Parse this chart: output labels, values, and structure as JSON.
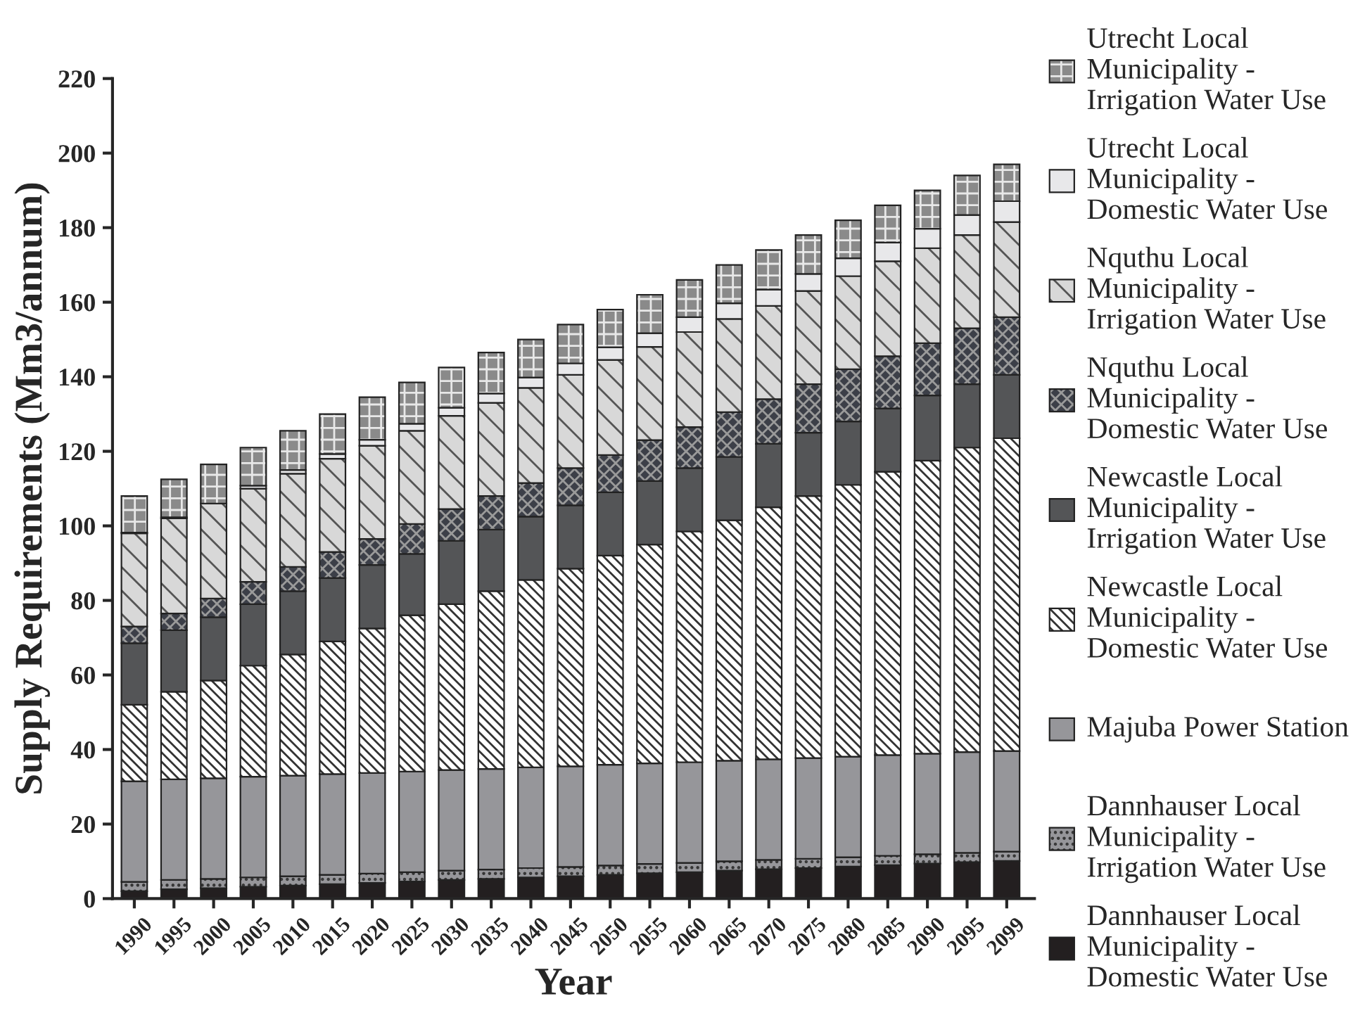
{
  "chart_data": {
    "type": "bar",
    "stacked": true,
    "xlabel": "Year",
    "ylabel": "Supply Requirements (Mm3/annum)",
    "categories": [
      "1990",
      "1995",
      "2000",
      "2005",
      "2010",
      "2015",
      "2020",
      "2025",
      "2030",
      "2035",
      "2040",
      "2045",
      "2050",
      "2055",
      "2060",
      "2065",
      "2070",
      "2075",
      "2080",
      "2085",
      "2090",
      "2095",
      "2099"
    ],
    "series": [
      {
        "name": "Dannhauser Local Municipality - Domestic Water Use",
        "color": "#231f20",
        "values": [
          2.0,
          2.5,
          2.8,
          3.2,
          3.5,
          3.9,
          4.2,
          4.6,
          5.0,
          5.3,
          5.7,
          6.0,
          6.4,
          6.8,
          7.1,
          7.5,
          7.9,
          8.2,
          8.6,
          9.0,
          9.4,
          9.8,
          10.1
        ]
      },
      {
        "name": "Dannhauser Local Municipality - Irrigation Water Use",
        "color": "#96969a",
        "values": [
          2.5,
          2.5,
          2.5,
          2.5,
          2.5,
          2.5,
          2.5,
          2.5,
          2.5,
          2.5,
          2.5,
          2.5,
          2.5,
          2.5,
          2.5,
          2.5,
          2.5,
          2.5,
          2.5,
          2.5,
          2.5,
          2.5,
          2.5
        ]
      },
      {
        "name": "Majuba Power Station",
        "color": "#96969a",
        "values": [
          27,
          27,
          27,
          27,
          27,
          27,
          27,
          27,
          27,
          27,
          27,
          27,
          27,
          27,
          27,
          27,
          27,
          27,
          27,
          27,
          27,
          27,
          27
        ]
      },
      {
        "name": "Newcastle Local Municipality - Domestic Water Use",
        "color": "#ffffff",
        "values": [
          20.5,
          23.5,
          26.2,
          29.8,
          32.5,
          35.6,
          38.8,
          41.9,
          44.5,
          47.7,
          50.3,
          53.0,
          56.1,
          58.7,
          61.9,
          64.5,
          67.6,
          70.3,
          72.9,
          76.0,
          78.6,
          81.7,
          83.9
        ]
      },
      {
        "name": "Newcastle Local Municipality - Irrigation Water Use",
        "color": "#545557",
        "values": [
          16.5,
          16.5,
          17,
          16.5,
          17,
          17,
          17,
          16.5,
          17,
          16.5,
          17,
          17,
          17,
          17,
          17,
          17,
          17,
          17,
          17,
          17,
          17.5,
          17,
          17
        ]
      },
      {
        "name": "Nquthu Local Municipality - Domestic Water Use",
        "color": "#3c3f48",
        "values": [
          4.5,
          4.5,
          5,
          6,
          6.5,
          7,
          7,
          8,
          8.5,
          9,
          9,
          10,
          10,
          11,
          11,
          12,
          12,
          13,
          14,
          14,
          14,
          15,
          15.5
        ]
      },
      {
        "name": "Nquthu Local Municipality - Irrigation Water Use",
        "color": "#d8d8d8",
        "values": [
          25,
          25.5,
          25.5,
          25,
          25,
          25,
          25,
          25,
          25,
          25,
          25.5,
          25,
          25.5,
          25,
          25.5,
          25,
          25,
          25,
          25,
          25.5,
          25.5,
          25,
          25.5
        ]
      },
      {
        "name": "Utrecht Local Municipality - Domestic Water Use",
        "color": "#e8e8ea",
        "values": [
          0.2,
          0.3,
          null,
          0.8,
          1.0,
          1.3,
          1.6,
          1.9,
          2.2,
          2.5,
          2.8,
          3.1,
          3.4,
          3.7,
          4.0,
          4.2,
          4.4,
          4.6,
          4.8,
          5.0,
          5.2,
          5.4,
          5.6
        ]
      },
      {
        "name": "Utrecht Local Municipality - Irrigation Water Use",
        "color": "#8a8a8a",
        "values": [
          9.8,
          10.2,
          10.5,
          10.2,
          10.5,
          10.7,
          11.4,
          11.1,
          10.8,
          11,
          10.2,
          10.4,
          10.1,
          10.3,
          10,
          10.3,
          10.6,
          10.4,
          10.2,
          10,
          10.3,
          10.6,
          9.9
        ]
      }
    ],
    "ylim": [
      0,
      220
    ],
    "yticks": [
      0,
      20,
      40,
      60,
      80,
      100,
      120,
      140,
      160,
      180,
      200,
      220
    ],
    "grid": false,
    "legend": "right"
  }
}
